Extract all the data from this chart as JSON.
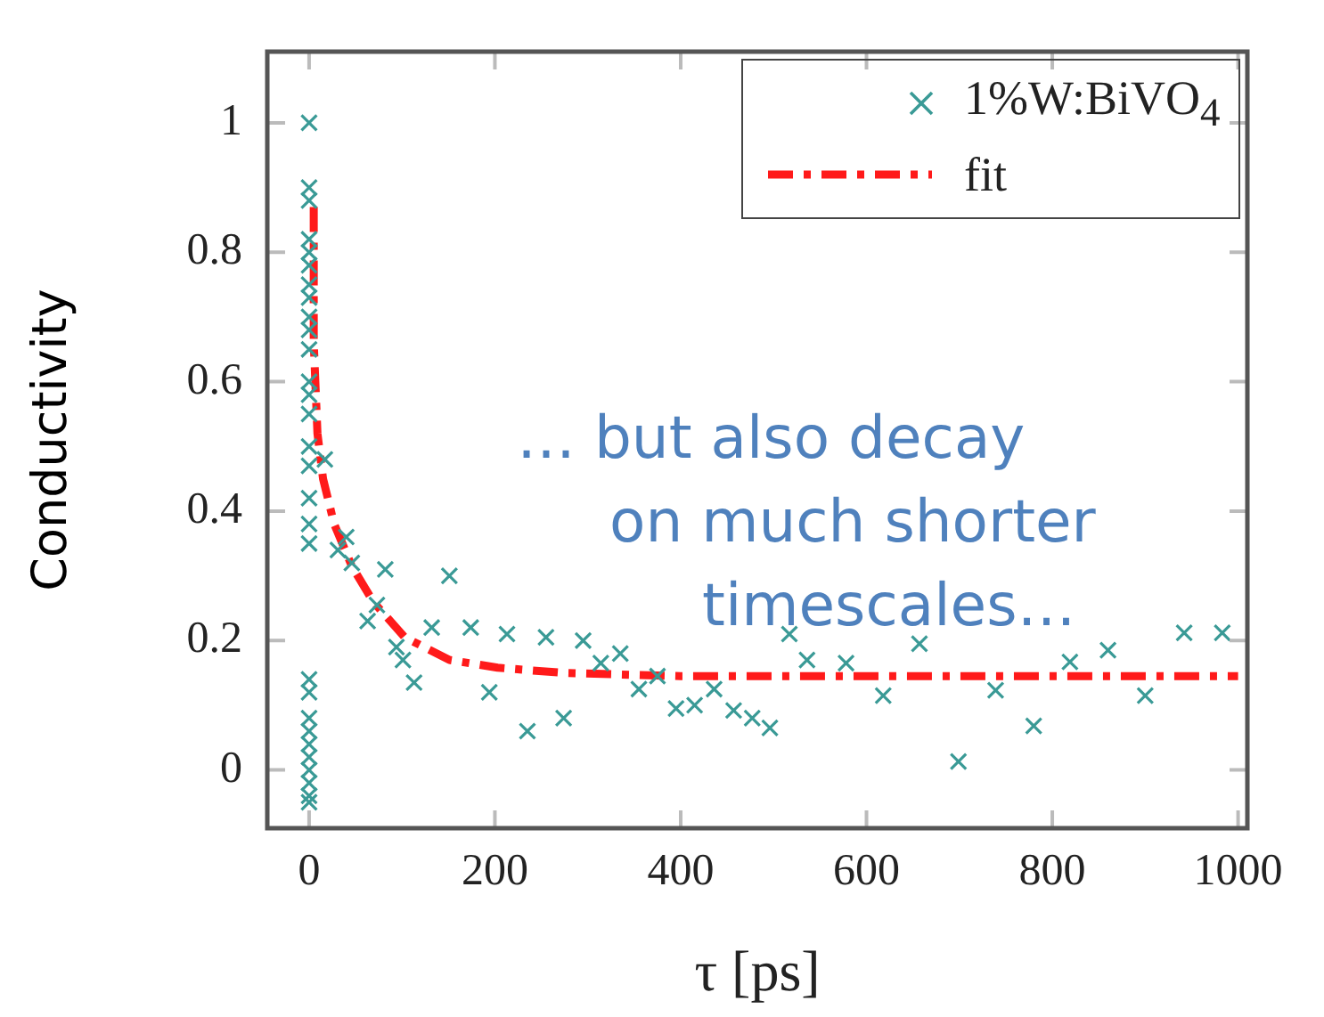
{
  "chart_data": {
    "type": "scatter",
    "xlabel": "τ [ps]",
    "ylabel": "Conductivity",
    "xlim": [
      -45,
      1010
    ],
    "ylim": [
      -0.09,
      1.11
    ],
    "xticks": [
      0,
      200,
      400,
      600,
      800,
      1000
    ],
    "yticks": [
      0,
      0.2,
      0.4,
      0.6,
      0.8,
      1
    ],
    "legend": "top right",
    "grid": false,
    "annotations": [
      "… but also decay\non much shorter\ntimescales…"
    ],
    "series": [
      {
        "name": "1%W:BiVO$_{4}$",
        "type": "scatter",
        "marker": "cross",
        "color": "#3a9a96",
        "x": [
          0,
          0,
          0,
          0,
          0,
          0,
          0,
          0,
          0,
          0,
          0,
          0,
          0,
          0,
          0,
          0,
          0,
          0,
          0,
          0,
          0,
          0,
          0,
          0,
          0,
          0,
          0,
          0,
          0,
          17,
          40,
          82,
          151,
          63,
          73,
          132,
          174,
          213,
          255,
          94,
          101,
          113,
          194,
          235,
          274,
          46,
          31,
          295,
          314,
          335,
          355,
          375,
          395,
          415,
          436,
          457,
          477,
          496,
          517,
          536,
          578,
          618,
          657,
          699,
          739,
          780,
          819,
          860,
          900,
          942,
          983
        ],
        "values": [
          1.0,
          0.9,
          0.88,
          0.82,
          0.8,
          0.78,
          0.75,
          0.73,
          0.7,
          0.68,
          0.65,
          0.6,
          0.58,
          0.55,
          0.5,
          0.47,
          0.42,
          0.38,
          0.35,
          0.14,
          0.12,
          0.08,
          0.06,
          0.04,
          0.02,
          0,
          -0.02,
          -0.04,
          -0.05,
          0.48,
          0.36,
          0.31,
          0.3,
          0.23,
          0.255,
          0.22,
          0.22,
          0.21,
          0.205,
          0.19,
          0.17,
          0.135,
          0.12,
          0.06,
          0.08,
          0.32,
          0.34,
          0.2,
          0.165,
          0.18,
          0.125,
          0.145,
          0.095,
          0.1,
          0.125,
          0.092,
          0.08,
          0.065,
          0.21,
          0.17,
          0.165,
          0.115,
          0.195,
          0.013,
          0.123,
          0.068,
          0.167,
          0.185,
          0.115,
          0.212,
          0.212
        ]
      },
      {
        "name": "fit",
        "type": "line",
        "marker": "none",
        "line_style": "dashed",
        "color": "#ff1a1a",
        "x": [
          5,
          5,
          9,
          15,
          27,
          46,
          69,
          103,
          151,
          203,
          274,
          400,
          600,
          800,
          1000
        ],
        "values": [
          0.87,
          0.66,
          0.52,
          0.45,
          0.38,
          0.315,
          0.26,
          0.205,
          0.17,
          0.158,
          0.15,
          0.145,
          0.145,
          0.145,
          0.145
        ]
      }
    ]
  }
}
